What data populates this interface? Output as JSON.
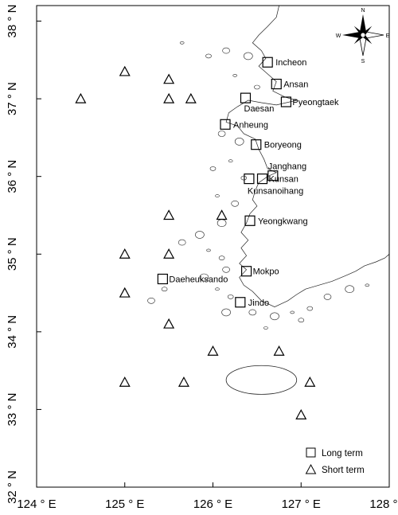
{
  "axes": {
    "x_ticks": [
      {
        "value": 124,
        "label": "124 ° E"
      },
      {
        "value": 125,
        "label": "125 ° E"
      },
      {
        "value": 126,
        "label": "126 ° E"
      },
      {
        "value": 127,
        "label": "127 ° E"
      },
      {
        "value": 128,
        "label": "128 ° E"
      }
    ],
    "y_ticks": [
      {
        "value": 32,
        "label": "32 ° N"
      },
      {
        "value": 33,
        "label": "33 ° N"
      },
      {
        "value": 34,
        "label": "34 ° N"
      },
      {
        "value": 35,
        "label": "35 ° N"
      },
      {
        "value": 36,
        "label": "36 ° N"
      },
      {
        "value": 37,
        "label": "37 ° N"
      },
      {
        "value": 38,
        "label": "38 ° N"
      }
    ],
    "xlim": [
      124,
      128
    ],
    "ylim": [
      32,
      38.2
    ]
  },
  "compass": {
    "north": "N",
    "south": "S",
    "east": "E",
    "west": "W"
  },
  "long_term_stations": [
    {
      "name": "Incheon",
      "lon": 126.62,
      "lat": 37.47
    },
    {
      "name": "Ansan",
      "lon": 126.72,
      "lat": 37.19
    },
    {
      "name": "Daesan",
      "lon": 126.37,
      "lat": 37.01
    },
    {
      "name": "Pyeongtaek",
      "lon": 126.83,
      "lat": 36.96
    },
    {
      "name": "Anheung",
      "lon": 126.14,
      "lat": 36.67
    },
    {
      "name": "Boryeong",
      "lon": 126.49,
      "lat": 36.41
    },
    {
      "name": "Janghang",
      "lon": 126.68,
      "lat": 36.01
    },
    {
      "name": "Kunsan",
      "lon": 126.56,
      "lat": 35.97
    },
    {
      "name": "Kunsanoihang",
      "lon": 126.41,
      "lat": 35.97
    },
    {
      "name": "Yeongkwang",
      "lon": 126.42,
      "lat": 35.43
    },
    {
      "name": "Mokpo",
      "lon": 126.38,
      "lat": 34.78
    },
    {
      "name": "Daeheuksando",
      "lon": 125.43,
      "lat": 34.68
    },
    {
      "name": "Jindo",
      "lon": 126.31,
      "lat": 34.38
    }
  ],
  "short_term_stations": [
    {
      "lon": 125.0,
      "lat": 37.35
    },
    {
      "lon": 125.5,
      "lat": 37.25
    },
    {
      "lon": 124.5,
      "lat": 37.0
    },
    {
      "lon": 125.5,
      "lat": 37.0
    },
    {
      "lon": 125.75,
      "lat": 37.0
    },
    {
      "lon": 125.5,
      "lat": 35.5
    },
    {
      "lon": 126.1,
      "lat": 35.5
    },
    {
      "lon": 125.0,
      "lat": 35.0
    },
    {
      "lon": 125.5,
      "lat": 35.0
    },
    {
      "lon": 125.0,
      "lat": 34.5
    },
    {
      "lon": 125.5,
      "lat": 34.1
    },
    {
      "lon": 126.0,
      "lat": 33.75
    },
    {
      "lon": 126.75,
      "lat": 33.75
    },
    {
      "lon": 125.0,
      "lat": 33.35
    },
    {
      "lon": 125.67,
      "lat": 33.35
    },
    {
      "lon": 127.1,
      "lat": 33.35
    },
    {
      "lon": 127.0,
      "lat": 32.93
    }
  ],
  "legend": {
    "position": "bottom-right",
    "long_term_label": "Long term",
    "short_term_label": "Short term"
  }
}
